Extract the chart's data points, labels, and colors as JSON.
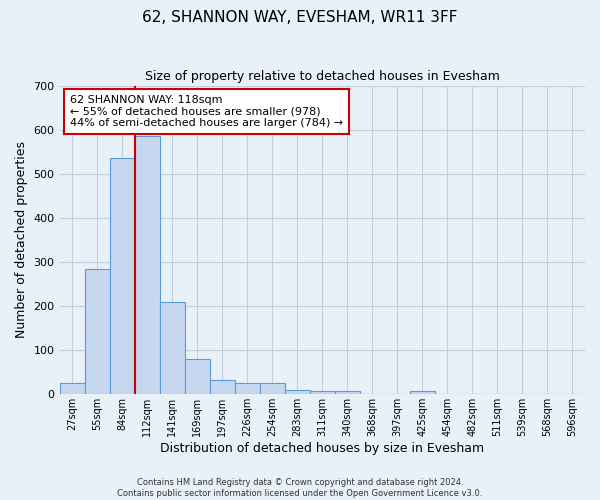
{
  "title": "62, SHANNON WAY, EVESHAM, WR11 3FF",
  "subtitle": "Size of property relative to detached houses in Evesham",
  "xlabel": "Distribution of detached houses by size in Evesham",
  "ylabel": "Number of detached properties",
  "bar_labels": [
    "27sqm",
    "55sqm",
    "84sqm",
    "112sqm",
    "141sqm",
    "169sqm",
    "197sqm",
    "226sqm",
    "254sqm",
    "283sqm",
    "311sqm",
    "340sqm",
    "368sqm",
    "397sqm",
    "425sqm",
    "454sqm",
    "482sqm",
    "511sqm",
    "539sqm",
    "568sqm",
    "596sqm"
  ],
  "bar_values": [
    25,
    285,
    535,
    585,
    210,
    80,
    33,
    25,
    25,
    10,
    7,
    7,
    0,
    0,
    7,
    0,
    0,
    0,
    0,
    0,
    0
  ],
  "bar_color": "#c5d8f0",
  "bar_edge_color": "#5b9bd5",
  "ylim": [
    0,
    700
  ],
  "yticks": [
    0,
    100,
    200,
    300,
    400,
    500,
    600,
    700
  ],
  "red_line_x": 2.5,
  "annotation_title": "62 SHANNON WAY: 118sqm",
  "annotation_line1": "← 55% of detached houses are smaller (978)",
  "annotation_line2": "44% of semi-detached houses are larger (784) →",
  "annotation_box_color": "#ffffff",
  "annotation_box_edge": "#cc0000",
  "footer_line1": "Contains HM Land Registry data © Crown copyright and database right 2024.",
  "footer_line2": "Contains public sector information licensed under the Open Government Licence v3.0.",
  "grid_color": "#c0d0e0",
  "background_color": "#e8f0f8"
}
